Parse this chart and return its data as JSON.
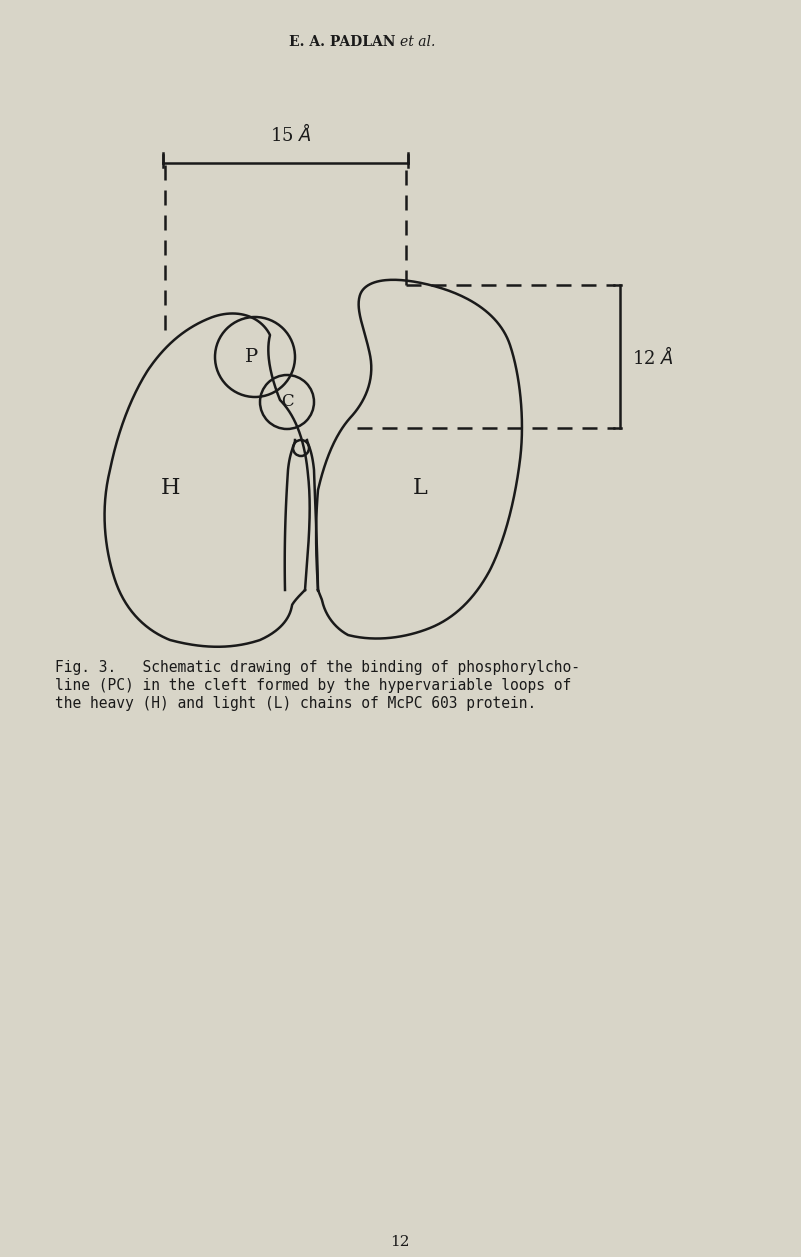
{
  "background_color": "#d8d5c8",
  "line_color": "#1a1a1a",
  "title_text": "E. A. PADLAN",
  "title_italic": "et al.",
  "caption_line1": "Fig. 3.   Schematic drawing of the binding of phosphorylcho-",
  "caption_line2": "line (PC) in the cleft formed by the hypervariable loops of",
  "caption_line3": "the heavy (H) and light (L) chains of McPC 603 protein.",
  "page_number": "12",
  "label_H": "H",
  "label_L": "L",
  "label_P": "P",
  "label_C": "C",
  "dim_15A": "15 Å",
  "dim_12A": "12 Å",
  "lw": 1.8
}
